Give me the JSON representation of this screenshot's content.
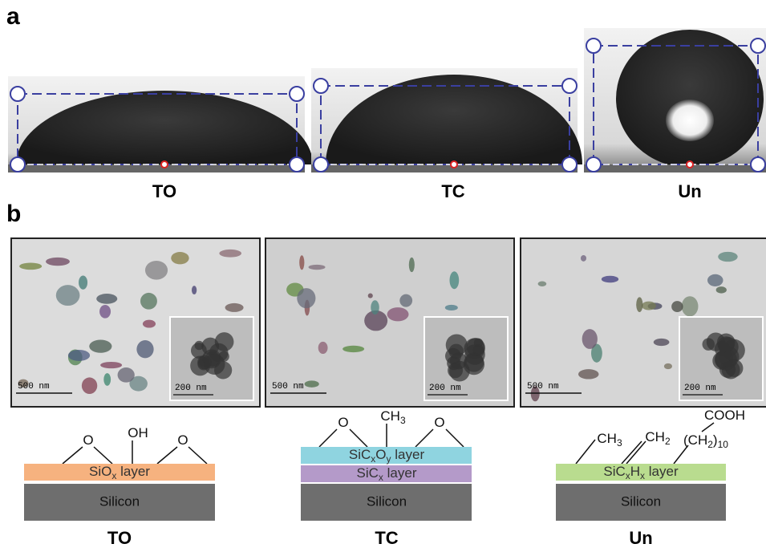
{
  "panel_a": {
    "label": "a",
    "samples": [
      "TO",
      "TC",
      "Un"
    ]
  },
  "panel_b": {
    "label": "b",
    "tem": [
      {
        "scale": "500 nm",
        "inset_scale": "200 nm"
      },
      {
        "scale": "500 nm",
        "inset_scale": "200 nm"
      },
      {
        "scale": "500 nm",
        "inset_scale": "200 nm"
      }
    ]
  },
  "schemes": [
    {
      "groups": [
        [
          "O"
        ],
        [
          "OH"
        ],
        [
          "O"
        ]
      ],
      "layers": [
        [
          "SiO",
          "x",
          " layer"
        ]
      ],
      "substrate": "Silicon",
      "label": "TO"
    },
    {
      "groups": [
        [
          "O"
        ],
        [
          "CH",
          "3"
        ],
        [
          "O"
        ]
      ],
      "layers": [
        [
          "SiC",
          "x",
          "O",
          "y",
          " layer"
        ],
        [
          "SiC",
          "x",
          " layer"
        ]
      ],
      "substrate": "Silicon",
      "label": "TC"
    },
    {
      "groups": [
        [
          "CH",
          "3"
        ],
        [
          "CH",
          "2"
        ],
        [
          "(CH",
          "2",
          ")",
          "10"
        ],
        [
          "COOH"
        ]
      ],
      "layers": [
        [
          "SiC",
          "x",
          "H",
          "x",
          " layer"
        ]
      ],
      "substrate": "Silicon",
      "label": "Un"
    }
  ]
}
